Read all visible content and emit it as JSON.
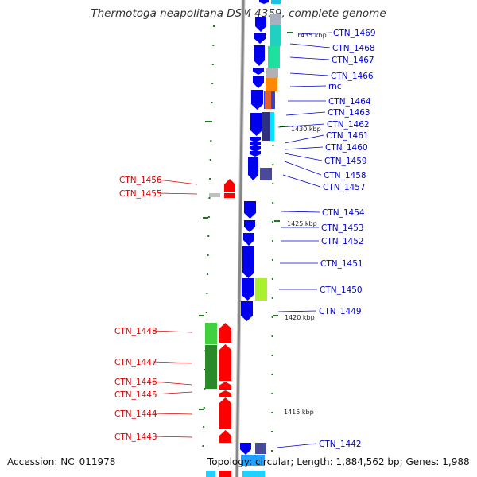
{
  "title": "Thermotoga neapolitana DSM 4359, complete genome",
  "accession": "Accession: NC_011978",
  "topology": "Topology: circular; Length: 1,884,562 bp; Genes: 1,988",
  "colors": {
    "forward": "#0000ee",
    "reverse": "#ff0000",
    "backbone": "#888888",
    "tick": "#1a7a1a",
    "label_forward": "#0000cc",
    "label_reverse": "#dd0000"
  },
  "ruler": [
    "1435 kbp",
    "1430 kbp",
    "1425 kbp",
    "1420 kbp",
    "1415 kbp"
  ],
  "forward_labels": [
    "CTN_1469",
    "CTN_1468",
    "CTN_1467",
    "CTN_1466",
    "rnc",
    "CTN_1464",
    "CTN_1463",
    "CTN_1462",
    "CTN_1461",
    "CTN_1460",
    "CTN_1459",
    "CTN_1458",
    "CTN_1457",
    "CTN_1454",
    "CTN_1453",
    "CTN_1452",
    "CTN_1451",
    "CTN_1450",
    "CTN_1449",
    "CTN_1442"
  ],
  "reverse_labels": [
    "CTN_1456",
    "CTN_1455",
    "CTN_1448",
    "CTN_1447",
    "CTN_1446",
    "CTN_1445",
    "CTN_1444",
    "CTN_1443"
  ]
}
